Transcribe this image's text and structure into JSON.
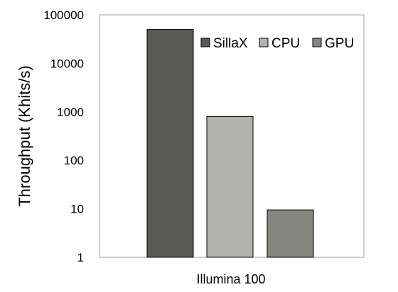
{
  "chart_data": {
    "type": "bar",
    "title": "",
    "xlabel": "",
    "ylabel": "Throughput (Khits/s)",
    "yscale": "log",
    "ylim": [
      1,
      100000
    ],
    "y_ticks": [
      "1",
      "10",
      "100",
      "1000",
      "10000",
      "100000"
    ],
    "categories": [
      "Illumina 100"
    ],
    "series": [
      {
        "name": "SillaX",
        "values": [
          50000
        ],
        "color": "#5a5a55"
      },
      {
        "name": "CPU",
        "values": [
          800
        ],
        "color": "#b2b2ae"
      },
      {
        "name": "GPU",
        "values": [
          9.5
        ],
        "color": "#868680"
      }
    ],
    "grid": false,
    "legend_position": "top-right"
  }
}
